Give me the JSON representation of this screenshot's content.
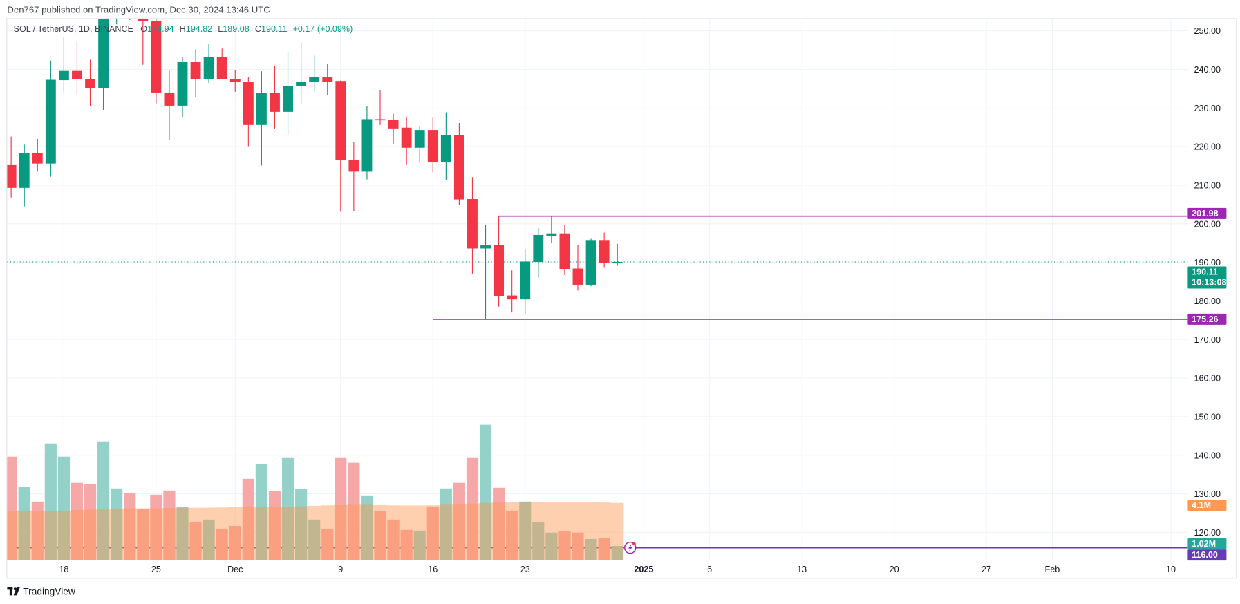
{
  "header": {
    "published": "Den767 published on TradingView.com, Dec 30, 2024 13:46 UTC"
  },
  "legend": {
    "symbol": "SOL / TetherUS, 1D, BINANCE",
    "o_label": "O",
    "o": "189.94",
    "h_label": "H",
    "h": "194.82",
    "l_label": "L",
    "l": "189.08",
    "c_label": "C",
    "c": "190.11",
    "change": "+0.17 (+0.09%)"
  },
  "footer": {
    "brand": "TradingView",
    "logo_icon": "tradingview-logo-icon"
  },
  "colors": {
    "up": "#089981",
    "down": "#F23645",
    "volume_up": "#93d1c9",
    "volume_down": "#f6a8a9",
    "volume_ma": "#ff9349",
    "level_line": "#9c27b0",
    "alert_line": "#673ab7",
    "last_volume_label": "#26a69a",
    "ma_label": "#ff9850"
  },
  "chart_data": {
    "type": "candlestick",
    "interval": "1D",
    "y_axis": {
      "range": [
        110,
        255
      ],
      "ticks": [
        "250.00",
        "240.00",
        "230.00",
        "220.00",
        "210.00",
        "200.00",
        "190.00",
        "180.00",
        "170.00",
        "160.00",
        "150.00",
        "140.00",
        "130.00",
        "120.00"
      ],
      "grid": true,
      "position": "right"
    },
    "x_axis": {
      "ticks": [
        {
          "date": "2024-11-18",
          "label": "18"
        },
        {
          "date": "2024-11-25",
          "label": "25"
        },
        {
          "date": "2024-12-01",
          "label": "Dec"
        },
        {
          "date": "2024-12-09",
          "label": "9"
        },
        {
          "date": "2024-12-16",
          "label": "16"
        },
        {
          "date": "2024-12-23",
          "label": "23"
        },
        {
          "date": "2025-01-01",
          "label": "2025"
        },
        {
          "date": "2025-01-06",
          "label": "6"
        },
        {
          "date": "2025-01-13",
          "label": "13"
        },
        {
          "date": "2025-01-20",
          "label": "20"
        },
        {
          "date": "2025-01-27",
          "label": "27"
        },
        {
          "date": "2025-02-01",
          "label": "Feb"
        },
        {
          "date": "2025-02-10",
          "label": "10"
        }
      ],
      "grid": true
    },
    "candles": [
      {
        "d": "2024-11-14",
        "o": 215.2,
        "h": 222.6,
        "l": 206.8,
        "c": 209.3,
        "v": 7.42
      },
      {
        "d": "2024-11-15",
        "o": 209.3,
        "h": 220.5,
        "l": 204.5,
        "c": 218.4,
        "v": 5.24
      },
      {
        "d": "2024-11-16",
        "o": 218.4,
        "h": 222.0,
        "l": 213.5,
        "c": 215.6,
        "v": 4.2
      },
      {
        "d": "2024-11-17",
        "o": 215.6,
        "h": 242.3,
        "l": 212.2,
        "c": 237.3,
        "v": 8.36
      },
      {
        "d": "2024-11-18",
        "o": 237.2,
        "h": 248.5,
        "l": 234.0,
        "c": 239.6,
        "v": 7.42
      },
      {
        "d": "2024-11-19",
        "o": 239.6,
        "h": 247.3,
        "l": 233.5,
        "c": 237.4,
        "v": 5.54
      },
      {
        "d": "2024-11-20",
        "o": 237.5,
        "h": 242.5,
        "l": 230.4,
        "c": 235.2,
        "v": 5.44
      },
      {
        "d": "2024-11-21",
        "o": 235.2,
        "h": 264.0,
        "l": 229.5,
        "c": 256.0,
        "v": 8.51
      },
      {
        "d": "2024-11-22",
        "o": 256.0,
        "h": 264.0,
        "l": 251.7,
        "c": 257.0,
        "v": 5.14
      },
      {
        "d": "2024-11-23",
        "o": 257.0,
        "h": 264.0,
        "l": 252.8,
        "c": 255.0,
        "v": 4.79
      },
      {
        "d": "2024-11-24",
        "o": 255.0,
        "h": 258.0,
        "l": 241.2,
        "c": 252.6,
        "v": 3.67
      },
      {
        "d": "2024-11-25",
        "o": 252.6,
        "h": 256.0,
        "l": 231.2,
        "c": 234.0,
        "v": 4.69
      },
      {
        "d": "2024-11-26",
        "o": 234.0,
        "h": 239.7,
        "l": 221.8,
        "c": 230.6,
        "v": 4.99
      },
      {
        "d": "2024-11-27",
        "o": 230.6,
        "h": 243.2,
        "l": 227.5,
        "c": 242.0,
        "v": 3.8
      },
      {
        "d": "2024-11-28",
        "o": 242.0,
        "h": 245.2,
        "l": 232.7,
        "c": 237.4,
        "v": 2.71
      },
      {
        "d": "2024-11-29",
        "o": 237.4,
        "h": 246.7,
        "l": 236.5,
        "c": 243.2,
        "v": 2.91
      },
      {
        "d": "2024-11-30",
        "o": 243.2,
        "h": 245.4,
        "l": 237.4,
        "c": 237.4,
        "v": 2.26
      },
      {
        "d": "2024-12-01",
        "o": 237.5,
        "h": 239.8,
        "l": 234.2,
        "c": 236.7,
        "v": 2.46
      },
      {
        "d": "2024-12-02",
        "o": 236.8,
        "h": 238.0,
        "l": 220.1,
        "c": 225.6,
        "v": 5.83
      },
      {
        "d": "2024-12-03",
        "o": 225.6,
        "h": 239.5,
        "l": 215.1,
        "c": 233.9,
        "v": 6.88
      },
      {
        "d": "2024-12-04",
        "o": 233.9,
        "h": 240.9,
        "l": 224.7,
        "c": 229.0,
        "v": 4.94
      },
      {
        "d": "2024-12-05",
        "o": 229.0,
        "h": 244.6,
        "l": 222.9,
        "c": 235.7,
        "v": 7.32
      },
      {
        "d": "2024-12-06",
        "o": 235.6,
        "h": 247.0,
        "l": 231.0,
        "c": 236.8,
        "v": 5.09
      },
      {
        "d": "2024-12-07",
        "o": 236.7,
        "h": 243.6,
        "l": 234.2,
        "c": 238.0,
        "v": 2.91
      },
      {
        "d": "2024-12-08",
        "o": 238.0,
        "h": 241.4,
        "l": 233.3,
        "c": 236.8,
        "v": 2.21
      },
      {
        "d": "2024-12-09",
        "o": 237.0,
        "h": 237.1,
        "l": 203.1,
        "c": 216.5,
        "v": 7.32
      },
      {
        "d": "2024-12-10",
        "o": 216.6,
        "h": 221.1,
        "l": 203.3,
        "c": 213.5,
        "v": 6.98
      },
      {
        "d": "2024-12-11",
        "o": 213.5,
        "h": 230.5,
        "l": 211.5,
        "c": 227.1,
        "v": 4.64
      },
      {
        "d": "2024-12-12",
        "o": 227.1,
        "h": 234.7,
        "l": 225.6,
        "c": 226.8,
        "v": 3.55
      },
      {
        "d": "2024-12-13",
        "o": 227.0,
        "h": 228.5,
        "l": 220.6,
        "c": 224.7,
        "v": 2.91
      },
      {
        "d": "2024-12-14",
        "o": 224.9,
        "h": 227.6,
        "l": 215.2,
        "c": 219.7,
        "v": 2.17
      },
      {
        "d": "2024-12-15",
        "o": 219.7,
        "h": 225.4,
        "l": 215.8,
        "c": 224.3,
        "v": 2.12
      },
      {
        "d": "2024-12-16",
        "o": 224.3,
        "h": 227.5,
        "l": 213.3,
        "c": 216.0,
        "v": 3.85
      },
      {
        "d": "2024-12-17",
        "o": 216.0,
        "h": 228.9,
        "l": 211.3,
        "c": 223.0,
        "v": 5.14
      },
      {
        "d": "2024-12-18",
        "o": 223.0,
        "h": 226.1,
        "l": 204.9,
        "c": 206.3,
        "v": 5.54
      },
      {
        "d": "2024-12-19",
        "o": 206.4,
        "h": 212.1,
        "l": 187.1,
        "c": 193.6,
        "v": 7.32
      },
      {
        "d": "2024-12-20",
        "o": 193.6,
        "h": 199.8,
        "l": 175.4,
        "c": 194.5,
        "v": 9.7
      },
      {
        "d": "2024-12-21",
        "o": 194.5,
        "h": 202.0,
        "l": 178.5,
        "c": 181.3,
        "v": 5.19
      },
      {
        "d": "2024-12-22",
        "o": 181.4,
        "h": 187.9,
        "l": 177.0,
        "c": 180.4,
        "v": 3.55
      },
      {
        "d": "2024-12-23",
        "o": 180.4,
        "h": 193.4,
        "l": 176.5,
        "c": 190.2,
        "v": 4.2
      },
      {
        "d": "2024-12-24",
        "o": 190.1,
        "h": 198.9,
        "l": 186.1,
        "c": 197.1,
        "v": 2.71
      },
      {
        "d": "2024-12-25",
        "o": 196.9,
        "h": 201.9,
        "l": 195.1,
        "c": 197.5,
        "v": 1.97
      },
      {
        "d": "2024-12-26",
        "o": 197.5,
        "h": 199.7,
        "l": 186.7,
        "c": 188.3,
        "v": 2.07
      },
      {
        "d": "2024-12-27",
        "o": 188.4,
        "h": 194.5,
        "l": 182.7,
        "c": 184.2,
        "v": 1.97
      },
      {
        "d": "2024-12-28",
        "o": 184.2,
        "h": 196.1,
        "l": 183.8,
        "c": 195.6,
        "v": 1.52
      },
      {
        "d": "2024-12-29",
        "o": 195.6,
        "h": 197.7,
        "l": 188.6,
        "c": 189.9,
        "v": 1.57
      },
      {
        "d": "2024-12-30",
        "o": 189.94,
        "h": 194.82,
        "l": 189.08,
        "c": 190.11,
        "v": 1.02
      }
    ],
    "volume_unit": "M",
    "volume_ma": [
      3.55,
      3.55,
      3.52,
      3.52,
      3.55,
      3.6,
      3.62,
      3.65,
      3.68,
      3.72,
      3.72,
      3.72,
      3.74,
      3.75,
      3.76,
      3.77,
      3.78,
      3.79,
      3.8,
      3.8,
      3.82,
      3.84,
      3.86,
      3.9,
      3.93,
      3.95,
      3.97,
      3.97,
      3.95,
      3.93,
      3.92,
      3.92,
      3.93,
      3.98,
      4.02,
      4.06,
      4.1,
      4.13,
      4.15,
      4.16,
      4.17,
      4.17,
      4.17,
      4.17,
      4.16,
      4.13,
      4.1
    ],
    "horizontal_lines": [
      {
        "price": 201.98,
        "label": "201.98",
        "from": "2024-12-21",
        "kind": "level"
      },
      {
        "price": 175.26,
        "label": "175.26",
        "from": "2024-12-16",
        "kind": "level"
      },
      {
        "price": 116.0,
        "label": "116.00",
        "from": "2024-11-14",
        "kind": "alert"
      }
    ],
    "alert_icon": "lightning-alert-icon",
    "last_price": {
      "price": 190.11,
      "label": "190.11",
      "countdown": "10:13:08"
    },
    "volume_ma_label": "4.1M",
    "last_volume_label": "1.02M"
  }
}
